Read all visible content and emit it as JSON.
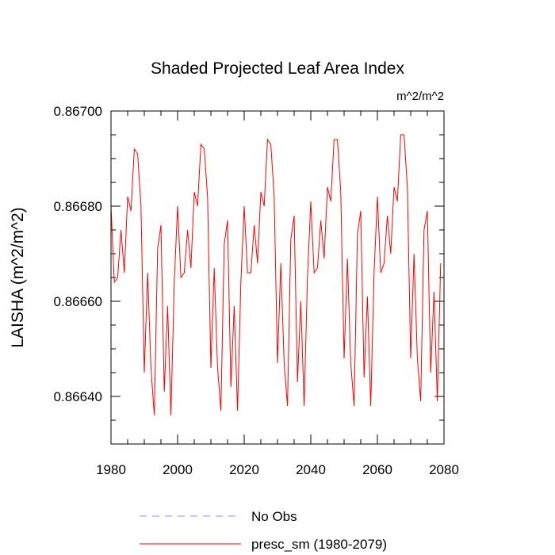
{
  "chart_data": {
    "type": "line",
    "title": "Shaded Projected Leaf Area Index",
    "units": "m^2/m^2",
    "ylabel": "LAISHA  (m^2/m^2)",
    "xlabel": "",
    "xlim": [
      1980,
      2080
    ],
    "ylim": [
      0.8663,
      0.867
    ],
    "xticks": [
      1980,
      2000,
      2020,
      2040,
      2060,
      2080
    ],
    "xtick_labels": [
      "1980",
      "2000",
      "2020",
      "2040",
      "2060",
      "2080"
    ],
    "yticks": [
      0.8664,
      0.8666,
      0.8668,
      0.867
    ],
    "ytick_labels": [
      "0.86640",
      "0.86660",
      "0.86680",
      "0.86700"
    ],
    "legend": [
      {
        "label": "No Obs",
        "color": "#8888ff",
        "style": "dashed"
      },
      {
        "label": "presc_sm (1980-2079)",
        "color": "#ff0000",
        "style": "solid"
      }
    ],
    "series": [
      {
        "name": "presc_sm (1980-2079)",
        "color": "#ff0000",
        "x": [
          1980,
          1981,
          1982,
          1983,
          1984,
          1985,
          1986,
          1987,
          1988,
          1989,
          1990,
          1991,
          1992,
          1993,
          1994,
          1995,
          1996,
          1997,
          1998,
          1999,
          2000,
          2001,
          2002,
          2003,
          2004,
          2005,
          2006,
          2007,
          2008,
          2009,
          2010,
          2011,
          2012,
          2013,
          2014,
          2015,
          2016,
          2017,
          2018,
          2019,
          2020,
          2021,
          2022,
          2023,
          2024,
          2025,
          2026,
          2027,
          2028,
          2029,
          2030,
          2031,
          2032,
          2033,
          2034,
          2035,
          2036,
          2037,
          2038,
          2039,
          2040,
          2041,
          2042,
          2043,
          2044,
          2045,
          2046,
          2047,
          2048,
          2049,
          2050,
          2051,
          2052,
          2053,
          2054,
          2055,
          2056,
          2057,
          2058,
          2059,
          2060,
          2061,
          2062,
          2063,
          2064,
          2065,
          2066,
          2067,
          2068,
          2069,
          2070,
          2071,
          2072,
          2073,
          2074,
          2075,
          2076,
          2077,
          2078,
          2079
        ],
        "values": [
          0.8668,
          0.86664,
          0.86665,
          0.86675,
          0.86666,
          0.86682,
          0.86679,
          0.86692,
          0.86691,
          0.8668,
          0.86645,
          0.86666,
          0.86646,
          0.86636,
          0.86671,
          0.86676,
          0.86641,
          0.86659,
          0.86636,
          0.86664,
          0.8668,
          0.86665,
          0.86666,
          0.86675,
          0.86667,
          0.86683,
          0.8668,
          0.86693,
          0.86692,
          0.86682,
          0.86646,
          0.86667,
          0.86646,
          0.86637,
          0.86672,
          0.86677,
          0.86642,
          0.86659,
          0.86637,
          0.86664,
          0.8668,
          0.86666,
          0.86666,
          0.86676,
          0.86668,
          0.86683,
          0.8668,
          0.86694,
          0.86693,
          0.86682,
          0.86647,
          0.86668,
          0.86647,
          0.86638,
          0.86673,
          0.86678,
          0.86643,
          0.8666,
          0.86638,
          0.86665,
          0.86681,
          0.86666,
          0.86667,
          0.86677,
          0.86669,
          0.86684,
          0.86681,
          0.86694,
          0.86694,
          0.86683,
          0.86648,
          0.86669,
          0.86647,
          0.86638,
          0.86674,
          0.86679,
          0.86644,
          0.86661,
          0.86638,
          0.86666,
          0.86682,
          0.86666,
          0.86668,
          0.86678,
          0.8667,
          0.86684,
          0.86681,
          0.86695,
          0.86695,
          0.86684,
          0.86648,
          0.8667,
          0.86648,
          0.86639,
          0.86675,
          0.86679,
          0.86645,
          0.86662,
          0.86639,
          0.86668
        ]
      }
    ]
  }
}
